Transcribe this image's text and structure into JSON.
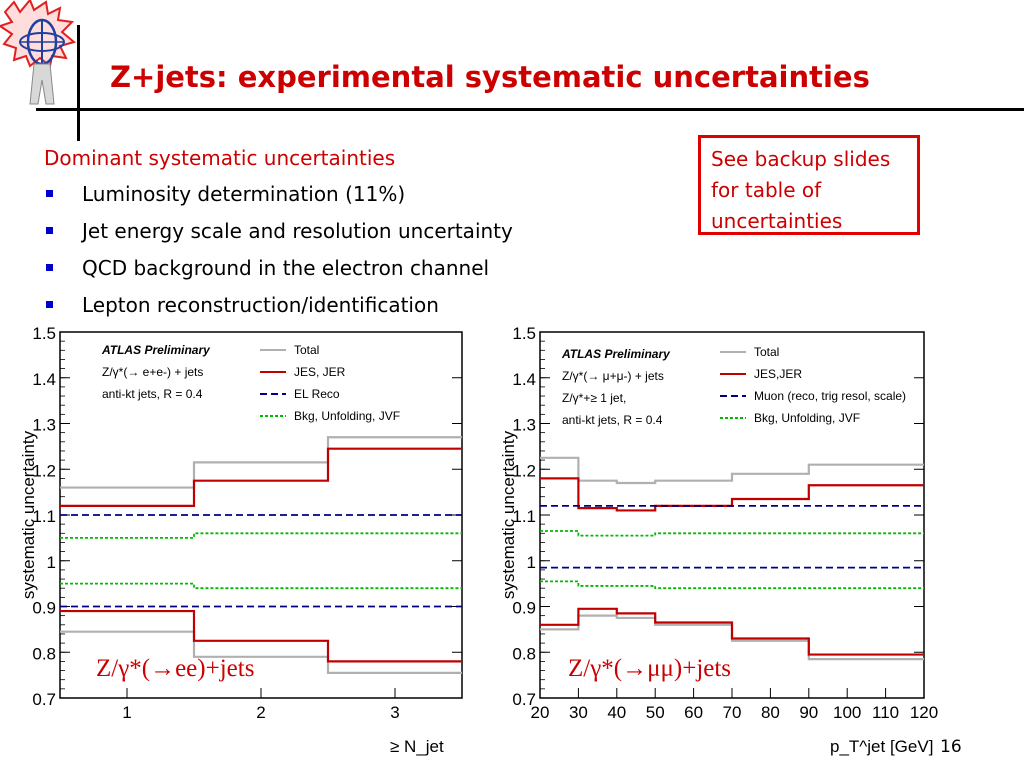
{
  "slide": {
    "title": "Z+jets: experimental systematic uncertainties",
    "subheading": "Dominant systematic uncertainties",
    "bullets": [
      "Luminosity determination (11%)",
      "Jet energy scale and resolution uncertainty",
      "QCD background in the electron channel",
      "Lepton reconstruction/identification"
    ],
    "callout_lines": [
      "See backup slides",
      "for table of",
      "uncertainties"
    ],
    "page_number": "16",
    "colors": {
      "title": "#cc0000",
      "bullet": "#0000cc",
      "callout_border": "#e00000"
    }
  },
  "chart_data": [
    {
      "type": "line",
      "ylabel": "systematic uncertainty",
      "xlabel": "≥ N_jet",
      "ylim": [
        0.7,
        1.5
      ],
      "yticks": [
        "0.7",
        "0.8",
        "0.9",
        "1",
        "1.1",
        "1.2",
        "1.3",
        "1.4",
        "1.5"
      ],
      "xticks": [
        "1",
        "2",
        "3"
      ],
      "x_edges": [
        0.5,
        1.5,
        2.5,
        3.5
      ],
      "panel_label": "Z/γ*(→ee)+jets",
      "annotations": [
        "ATLAS Preliminary",
        "Z/γ*(→ e+e-) + jets",
        "anti-kt jets, R = 0.4"
      ],
      "series": [
        {
          "name": "Total",
          "color": "#b0b0b0",
          "dash": "solid",
          "up": [
            1.16,
            1.215,
            1.27
          ],
          "down": [
            0.845,
            0.79,
            0.755
          ]
        },
        {
          "name": "JES, JER",
          "color": "#c00000",
          "dash": "solid",
          "up": [
            1.12,
            1.175,
            1.245
          ],
          "down": [
            0.89,
            0.825,
            0.78
          ]
        },
        {
          "name": "EL Reco",
          "color": "#000080",
          "dash": "dashed",
          "up": [
            1.1,
            1.1,
            1.1
          ],
          "down": [
            0.9,
            0.9,
            0.9
          ]
        },
        {
          "name": "Bkg, Unfolding, JVF",
          "color": "#00bb00",
          "dash": "dotted",
          "up": [
            1.05,
            1.06,
            1.06
          ],
          "down": [
            0.95,
            0.94,
            0.94
          ]
        }
      ]
    },
    {
      "type": "line",
      "ylabel": "systematic uncertainty",
      "xlabel": "p_T^jet [GeV]",
      "ylim": [
        0.7,
        1.5
      ],
      "yticks": [
        "0.7",
        "0.8",
        "0.9",
        "1",
        "1.1",
        "1.2",
        "1.3",
        "1.4",
        "1.5"
      ],
      "xticks": [
        "20",
        "30",
        "40",
        "50",
        "60",
        "70",
        "80",
        "90",
        "100",
        "110",
        "120"
      ],
      "x_edges": [
        20,
        30,
        40,
        50,
        70,
        90,
        120
      ],
      "panel_label": "Z/γ*(→μμ)+jets",
      "annotations": [
        "ATLAS Preliminary",
        "Z/γ*(→ μ+μ-) + jets",
        "Z/γ*+≥ 1 jet,",
        "anti-kt jets, R = 0.4"
      ],
      "series": [
        {
          "name": "Total",
          "color": "#b0b0b0",
          "dash": "solid",
          "up": [
            1.225,
            1.175,
            1.17,
            1.175,
            1.19,
            1.21
          ],
          "down": [
            0.85,
            0.88,
            0.875,
            0.86,
            0.825,
            0.785
          ]
        },
        {
          "name": "JES,JER",
          "color": "#c00000",
          "dash": "solid",
          "up": [
            1.18,
            1.115,
            1.11,
            1.12,
            1.135,
            1.165
          ],
          "down": [
            0.86,
            0.895,
            0.885,
            0.865,
            0.83,
            0.795
          ]
        },
        {
          "name": "Muon (reco, trig resol, scale)",
          "color": "#000080",
          "dash": "dashed",
          "up": [
            1.12,
            1.12,
            1.12,
            1.12,
            1.12,
            1.12
          ],
          "down": [
            0.985,
            0.985,
            0.985,
            0.985,
            0.985,
            0.985
          ]
        },
        {
          "name": "Bkg, Unfolding, JVF",
          "color": "#00bb00",
          "dash": "dotted",
          "up": [
            1.065,
            1.055,
            1.055,
            1.06,
            1.06,
            1.06
          ],
          "down": [
            0.955,
            0.945,
            0.945,
            0.94,
            0.94,
            0.94
          ]
        }
      ]
    }
  ]
}
